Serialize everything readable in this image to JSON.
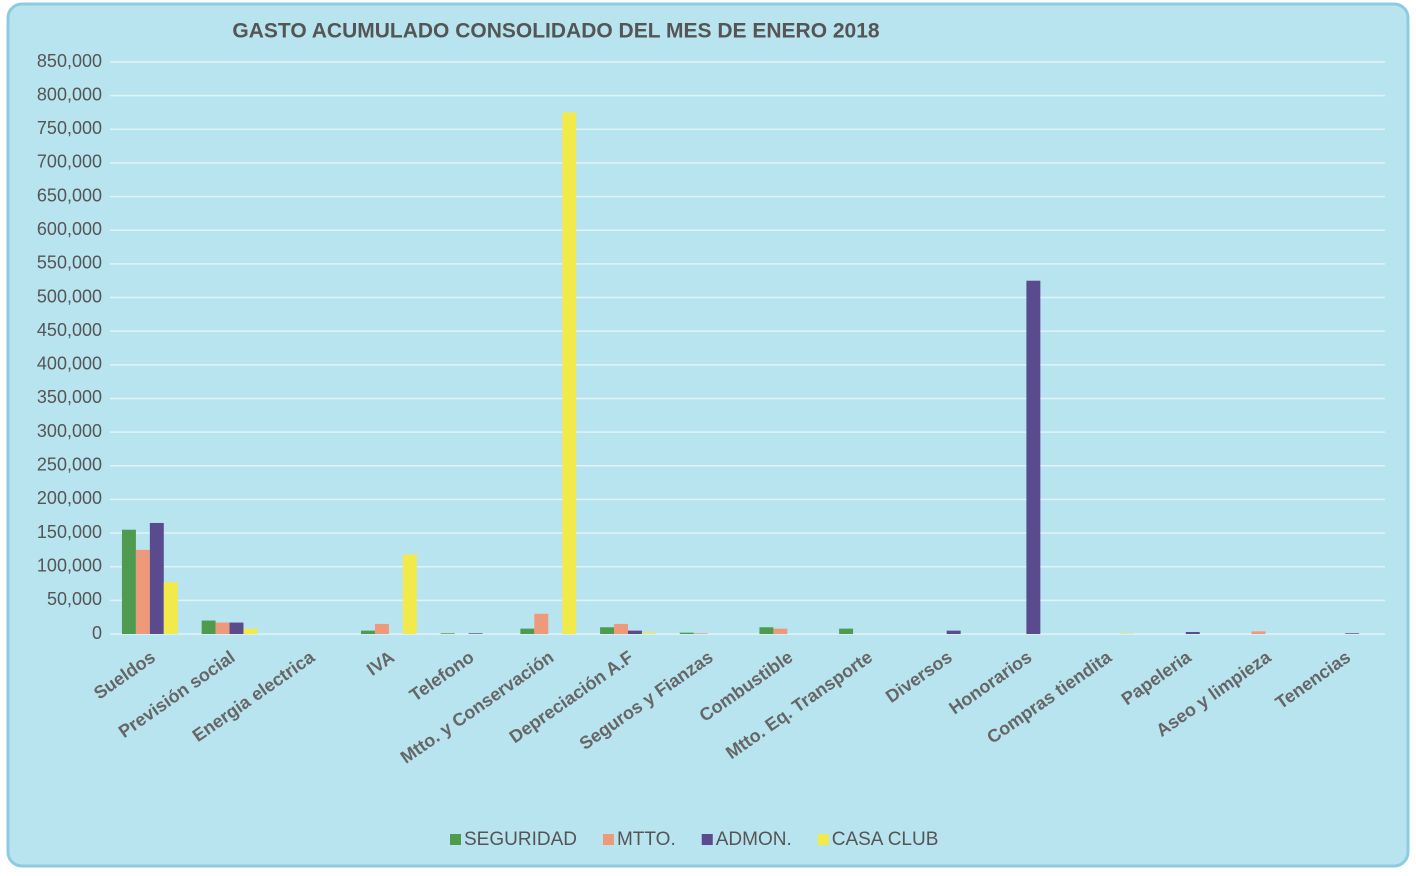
{
  "chart_data": {
    "type": "bar",
    "title": "GASTO ACUMULADO CONSOLIDADO DEL MES DE ENERO 2018",
    "categories": [
      "Sueldos",
      "Previsión social",
      "Energia electrica",
      "IVA",
      "Telefono",
      "Mtto. y Conservación",
      "Depreciación A.F",
      "Seguros y Fianzas",
      "Combustible",
      "Mtto. Eq. Transporte",
      "Diversos",
      "Honorarios",
      "Compras tiendita",
      "Papeleria",
      "Aseo y limpieza",
      "Tenencias"
    ],
    "series": [
      {
        "name": "SEGURIDAD",
        "color": "#4e9a4e",
        "values": [
          155000,
          20000,
          0,
          5000,
          1000,
          8000,
          10000,
          2000,
          10000,
          8000,
          0,
          0,
          0,
          0,
          0,
          0
        ]
      },
      {
        "name": "MTTO.",
        "color": "#ee9a7a",
        "values": [
          125000,
          17000,
          0,
          15000,
          0,
          30000,
          15000,
          1000,
          8000,
          0,
          0,
          0,
          0,
          0,
          4000,
          0
        ]
      },
      {
        "name": "ADMON.",
        "color": "#5a4a8e",
        "values": [
          165000,
          17000,
          0,
          0,
          1000,
          0,
          5000,
          0,
          0,
          0,
          5000,
          525000,
          0,
          3000,
          0,
          1000
        ]
      },
      {
        "name": "CASA CLUB",
        "color": "#f2ea4a",
        "values": [
          77000,
          8000,
          0,
          118000,
          0,
          775000,
          2000,
          0,
          0,
          0,
          0,
          0,
          1000,
          0,
          0,
          0
        ]
      }
    ],
    "ylim": [
      0,
      850000
    ],
    "yticks": [
      0,
      {
        "value": 50000,
        "label": "50,000"
      },
      {
        "value": 100000,
        "label": "100,000"
      },
      {
        "value": 150000,
        "label": "150,000"
      },
      {
        "value": 200000,
        "label": "200,000"
      },
      {
        "value": 250000,
        "label": "250,000"
      },
      {
        "value": 300000,
        "label": "300,000"
      },
      {
        "value": 350000,
        "label": "350,000"
      },
      {
        "value": 400000,
        "label": "400,000"
      },
      {
        "value": 450000,
        "label": "450,000"
      },
      {
        "value": 500000,
        "label": "500,000"
      },
      {
        "value": 550000,
        "label": "550,000"
      },
      {
        "value": 600000,
        "label": "600,000"
      },
      {
        "value": 650000,
        "label": "650,000"
      },
      {
        "value": 700000,
        "label": "700,000"
      },
      {
        "value": 750000,
        "label": "750,000"
      },
      {
        "value": 800000,
        "label": "800,000"
      },
      {
        "value": 850000,
        "label": "850,000"
      }
    ],
    "grid": true,
    "legend": "bottom"
  }
}
